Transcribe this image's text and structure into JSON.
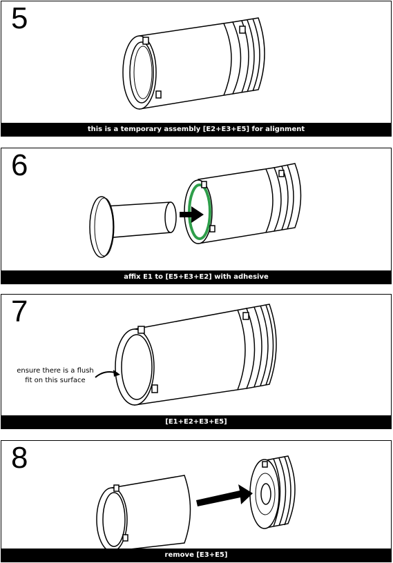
{
  "steps": [
    {
      "number": "5",
      "caption": "this is a temporary assembly [E2+E3+E5] for alignment"
    },
    {
      "number": "6",
      "caption": "affix E1 to [E5+E3+E2] with adhesive"
    },
    {
      "number": "7",
      "caption": "[E1+E2+E3+E5]",
      "annotation": "ensure there is a flush fit on this surface"
    },
    {
      "number": "8",
      "caption": "remove [E3+E5]"
    }
  ],
  "colors": {
    "adhesive": "#2e9e4a",
    "caption_bg": "#000000",
    "caption_text": "#ffffff"
  }
}
